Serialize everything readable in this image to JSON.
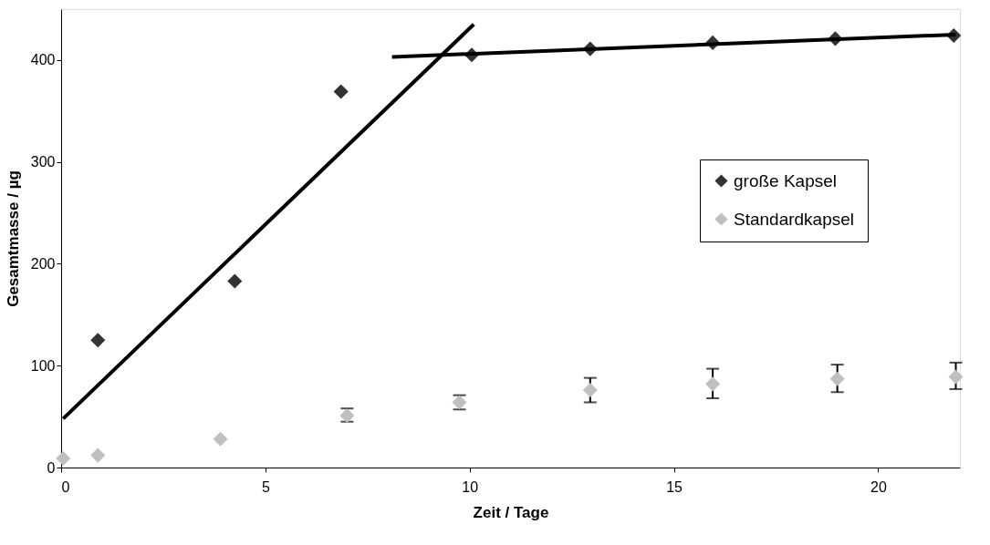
{
  "chart_data": {
    "type": "scatter",
    "xlabel": "Zeit / Tage",
    "ylabel": "Gesamtmasse / µg",
    "xlim": [
      0,
      22
    ],
    "xticks": [
      0,
      5,
      10,
      15,
      20
    ],
    "ylim": [
      0,
      450
    ],
    "yticks": [
      0,
      100,
      200,
      300,
      400
    ],
    "grid": false,
    "legend": "right",
    "series": [
      {
        "name": "große Kapsel",
        "color": "#333333",
        "marker": "diamond",
        "x": [
          0.9,
          4.25,
          6.85,
          10.05,
          12.95,
          15.95,
          18.95,
          21.85
        ],
        "values": [
          125,
          183,
          369,
          405,
          411,
          417,
          421,
          424
        ]
      },
      {
        "name": "Standardkapsel",
        "color": "#c0c0c0",
        "marker": "diamond",
        "x": [
          0.05,
          0.9,
          3.9,
          7.0,
          9.75,
          12.95,
          15.95,
          19.0,
          21.9
        ],
        "values": [
          9,
          12,
          28,
          51,
          64,
          76,
          82,
          87,
          89
        ],
        "errors": [
          null,
          null,
          null,
          [
            45,
            58
          ],
          [
            57,
            71
          ],
          [
            64,
            88
          ],
          [
            68,
            97
          ],
          [
            74,
            101
          ],
          [
            77,
            103
          ]
        ]
      },
      {
        "type": "line",
        "color": "#000000",
        "marker": "none",
        "x": [
          0.05,
          10.1
        ],
        "values": [
          48,
          435
        ]
      },
      {
        "type": "line",
        "color": "#000000",
        "marker": "none",
        "x": [
          8.1,
          21.9
        ],
        "values": [
          403,
          425
        ]
      }
    ]
  }
}
